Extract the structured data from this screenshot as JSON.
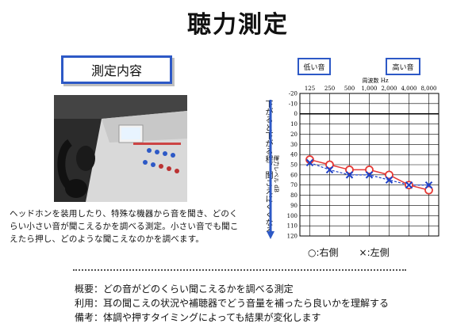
{
  "title": "聴力測定",
  "section_label": "測定内容",
  "description": "ヘッドホンを装用したり、特殊な機器から音を聞き、どのくらい小さい音が聞こえるかを調べる測定。小さい音でも聞こえたら押し、どのような聞こえなのかを調べます。",
  "vertical_note": "下がると下がる程，聞こえにくくなる",
  "low_label": "低い音",
  "high_label": "高い音",
  "legend": {
    "right": "○:右側",
    "left": "×:左側"
  },
  "colors": {
    "accent": "#2d59c6",
    "right": "#e53935",
    "left": "#1e40c8"
  },
  "summary": [
    "概要：どの音がどのくらい聞こえるかを調べる測定",
    "利用：耳の聞こえの状況や補聴器でどう音量を補ったら良いかを理解する",
    "備考：体調や押すタイミングによっても結果が変化します"
  ],
  "chart_data": {
    "type": "line",
    "xlabel": "周波数 Hz",
    "ylabel": "聴力レベル dB",
    "x": [
      "125",
      "250",
      "500",
      "1,000",
      "2,000",
      "4,000",
      "8,000"
    ],
    "ylim": [
      -20,
      120
    ],
    "y_ticks": [
      "-20",
      "-10",
      "0",
      "10",
      "20",
      "30",
      "40",
      "50",
      "60",
      "70",
      "80",
      "90",
      "100",
      "110",
      "120"
    ],
    "series": [
      {
        "name": "右側",
        "values": [
          45,
          50,
          55,
          55,
          60,
          70,
          75
        ]
      },
      {
        "name": "左側",
        "values": [
          48,
          55,
          60,
          60,
          65,
          70,
          70
        ]
      }
    ]
  }
}
